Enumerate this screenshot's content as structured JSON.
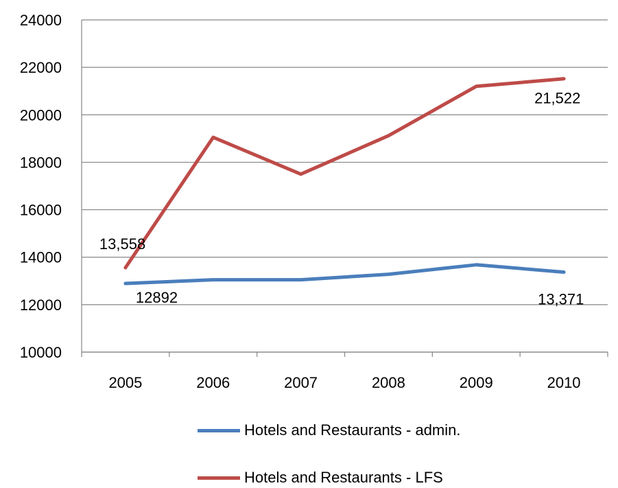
{
  "chart_data": {
    "type": "line",
    "title": "",
    "xlabel": "",
    "ylabel": "",
    "categories": [
      "2005",
      "2006",
      "2007",
      "2008",
      "2009",
      "2010"
    ],
    "ylim": [
      10000,
      24000
    ],
    "yticks": [
      "10000",
      "12000",
      "14000",
      "16000",
      "18000",
      "20000",
      "22000",
      "24000"
    ],
    "grid": true,
    "legend_position": "bottom",
    "series": [
      {
        "name": "Hotels and Restaurants - admin.",
        "color": "#4a7ebb",
        "values": [
          12892,
          13050,
          13050,
          13280,
          13680,
          13371
        ]
      },
      {
        "name": "Hotels and Restaurants - LFS",
        "color": "#be4b48",
        "values": [
          13558,
          19050,
          17500,
          19120,
          21200,
          21522
        ]
      }
    ],
    "annotations": [
      {
        "series": 0,
        "index": 0,
        "text": "12892"
      },
      {
        "series": 0,
        "index": 5,
        "text": "13,371"
      },
      {
        "series": 1,
        "index": 0,
        "text": "13,558"
      },
      {
        "series": 1,
        "index": 5,
        "text": "21,522"
      }
    ]
  }
}
